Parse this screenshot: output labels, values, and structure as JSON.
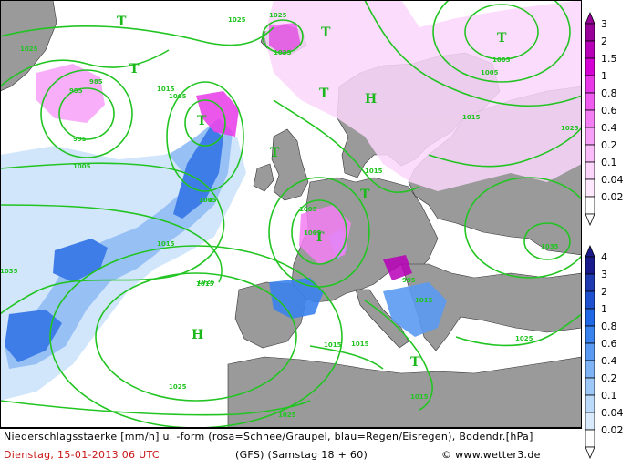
{
  "caption": {
    "line1": "Niederschlagsstaerke [mm/h] u. -form (rosa=Schnee/Graupel, blau=Regen/Eisregen), Bodendr.[hPa]",
    "date": "Dienstag, 15-01-2013  06 UTC",
    "model": "(GFS)  (Samstag 18 + 60)",
    "copyright": "© www.wetter3.de"
  },
  "legend": {
    "snow_levels": [
      "3",
      "2",
      "1.5",
      "1",
      "0.8",
      "0.6",
      "0.4",
      "0.2",
      "0.1",
      "0.04",
      "0.02"
    ],
    "rain_levels": [
      "4",
      "3",
      "2",
      "1",
      "0.8",
      "0.6",
      "0.4",
      "0.2",
      "0.1",
      "0.04",
      "0.02"
    ],
    "snow_colors": [
      "#990099",
      "#b800b8",
      "#d400d4",
      "#e838e8",
      "#f05cf0",
      "#f47ef4",
      "#f7a0f7",
      "#f9bef9",
      "#fbd6fb",
      "#fde8fd",
      "#ffffff"
    ],
    "rain_colors": [
      "#1a1a8c",
      "#1f3ab0",
      "#1e50d0",
      "#2168e4",
      "#3a82ee",
      "#5a9af2",
      "#7eb4f6",
      "#9ec8f8",
      "#bcdafa",
      "#d8eafc",
      "#ffffff"
    ]
  },
  "map": {
    "sea_color": "#ffffff",
    "land_color": "#9a9a9a",
    "isobar_color": "#22c422",
    "isobar_labels": [
      "1025",
      "1015",
      "1005",
      "995",
      "985",
      "995",
      "1005",
      "1015",
      "1015",
      "1025",
      "1025",
      "1015",
      "1005",
      "1035",
      "1025",
      "1015",
      "1005",
      "1015",
      "1005",
      "995",
      "1025",
      "1035",
      "1025",
      "1015",
      "1025",
      "1015",
      "1005",
      "1015",
      "1025",
      "1005",
      "1035",
      "1015"
    ],
    "pressure_centers": [
      "T",
      "T",
      "T",
      "T",
      "T",
      "T",
      "T",
      "H",
      "H",
      "T",
      "T",
      "T"
    ]
  }
}
